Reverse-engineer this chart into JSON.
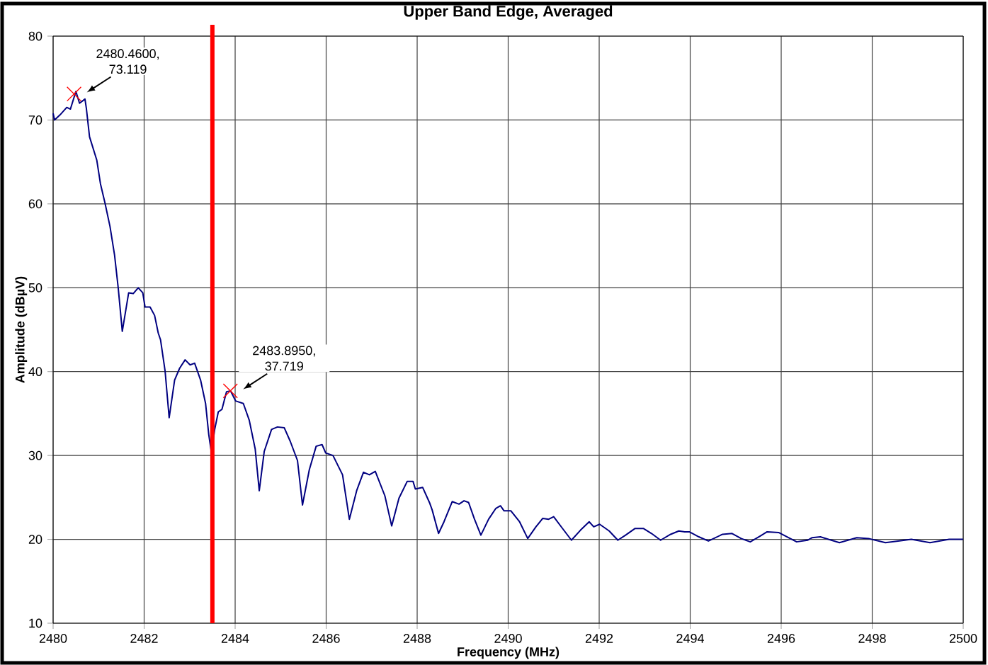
{
  "chart_data": {
    "type": "line",
    "title": "Upper Band Edge, Averaged",
    "xlabel": "Frequency (MHz)",
    "ylabel": "Amplitude (dBµV)",
    "xlim": [
      2480,
      2500
    ],
    "ylim": [
      10,
      80
    ],
    "xticks": [
      2480,
      2482,
      2484,
      2486,
      2488,
      2490,
      2492,
      2494,
      2496,
      2498,
      2500
    ],
    "yticks": [
      10,
      20,
      30,
      40,
      50,
      60,
      70,
      80
    ],
    "grid": true,
    "marker": "none",
    "line_style": "solid",
    "ref_lines": [
      {
        "axis": "x",
        "value": 2483.5,
        "color": "#ff0000"
      }
    ],
    "annotations": [
      {
        "text": "2480.4600, 73.119",
        "x": 2480.46,
        "y": 73.119
      },
      {
        "text": "2483.8950, 37.719",
        "x": 2483.895,
        "y": 37.719
      }
    ],
    "series": [
      {
        "type": "scatter",
        "marker": "cross",
        "color": "#ff0000",
        "x": [
          2480.46,
          2483.895
        ],
        "values": [
          73.1,
          37.7
        ]
      },
      {
        "color": "#000080",
        "x": [
          2480.0,
          2480.03,
          2480.15,
          2480.3,
          2480.38,
          2480.5,
          2480.58,
          2480.7,
          2480.73,
          2480.8,
          2480.96,
          2481.04,
          2481.14,
          2481.25,
          2481.35,
          2481.43,
          2481.52,
          2481.66,
          2481.76,
          2481.87,
          2481.97,
          2482.02,
          2482.13,
          2482.23,
          2482.31,
          2482.36,
          2482.46,
          2482.55,
          2482.67,
          2482.78,
          2482.9,
          2483.01,
          2483.11,
          2483.24,
          2483.35,
          2483.42,
          2483.48,
          2483.55,
          2483.63,
          2483.71,
          2483.81,
          2483.9,
          2484.01,
          2484.18,
          2484.31,
          2484.44,
          2484.53,
          2484.64,
          2484.8,
          2484.93,
          2485.08,
          2485.21,
          2485.37,
          2485.48,
          2485.63,
          2485.78,
          2485.91,
          2485.99,
          2486.15,
          2486.36,
          2486.51,
          2486.67,
          2486.82,
          2486.95,
          2487.08,
          2487.29,
          2487.44,
          2487.6,
          2487.78,
          2487.91,
          2487.96,
          2488.12,
          2488.27,
          2488.33,
          2488.47,
          2488.59,
          2488.77,
          2488.92,
          2489.03,
          2489.13,
          2489.26,
          2489.4,
          2489.57,
          2489.73,
          2489.83,
          2489.91,
          2490.06,
          2490.25,
          2490.43,
          2490.61,
          2490.76,
          2490.89,
          2491.0,
          2491.18,
          2491.39,
          2491.59,
          2491.78,
          2491.88,
          2492.01,
          2492.22,
          2492.41,
          2492.58,
          2492.79,
          2492.97,
          2493.15,
          2493.35,
          2493.57,
          2493.75,
          2493.88,
          2493.98,
          2494.19,
          2494.4,
          2494.71,
          2494.92,
          2495.12,
          2495.32,
          2495.54,
          2495.69,
          2495.95,
          2496.34,
          2496.58,
          2496.68,
          2496.86,
          2497.28,
          2497.66,
          2497.92,
          2498.29,
          2498.86,
          2499.27,
          2499.69,
          2500.0
        ],
        "values": [
          70.8,
          70.0,
          70.6,
          71.5,
          71.3,
          73.4,
          72.0,
          72.5,
          71.4,
          68.0,
          65.2,
          62.4,
          60.1,
          57.3,
          53.9,
          50.0,
          44.8,
          49.4,
          49.3,
          50.0,
          49.4,
          47.7,
          47.7,
          46.7,
          44.6,
          43.8,
          40.1,
          34.5,
          39.0,
          40.4,
          41.4,
          40.8,
          41.0,
          39.0,
          36.2,
          32.5,
          30.3,
          33.1,
          35.2,
          35.5,
          37.6,
          37.7,
          36.5,
          36.2,
          34.2,
          30.8,
          25.8,
          30.5,
          33.1,
          33.4,
          33.3,
          31.7,
          29.4,
          24.1,
          28.3,
          31.1,
          31.3,
          30.3,
          30.0,
          27.7,
          22.4,
          25.8,
          28.0,
          27.7,
          28.1,
          25.2,
          21.6,
          24.9,
          26.9,
          26.9,
          26.0,
          26.2,
          24.4,
          23.5,
          20.7,
          22.1,
          24.5,
          24.2,
          24.6,
          24.4,
          22.4,
          20.5,
          22.4,
          23.7,
          24.0,
          23.4,
          23.4,
          22.1,
          20.1,
          21.5,
          22.5,
          22.4,
          22.7,
          21.4,
          19.9,
          21.1,
          22.1,
          21.5,
          21.8,
          21.0,
          19.9,
          20.5,
          21.3,
          21.3,
          20.7,
          19.9,
          20.6,
          21.0,
          20.9,
          20.9,
          20.3,
          19.8,
          20.6,
          20.7,
          20.1,
          19.7,
          20.4,
          20.9,
          20.8,
          19.7,
          19.9,
          20.2,
          20.3,
          19.6,
          20.2,
          20.1,
          19.6,
          20.0,
          19.6,
          20.0,
          20.0
        ]
      }
    ]
  }
}
